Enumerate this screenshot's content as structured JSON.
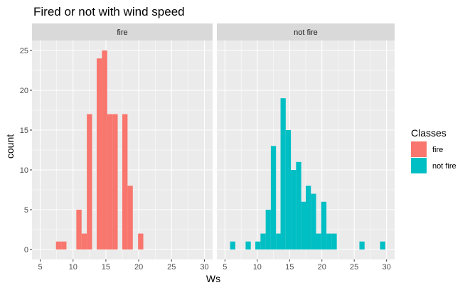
{
  "chart_data": {
    "type": "bar",
    "subtype": "faceted-histogram",
    "title": "Fired or not with wind speed",
    "xlabel": "Ws",
    "ylabel": "count",
    "xlim": [
      5,
      30
    ],
    "ylim": [
      0,
      25
    ],
    "x_ticks": [
      5,
      10,
      15,
      20,
      25,
      30
    ],
    "y_ticks": [
      0,
      5,
      10,
      15,
      20,
      25
    ],
    "bin_width": 0.8,
    "grid": true,
    "legend": {
      "title": "Classes",
      "position": "right",
      "entries": [
        {
          "label": "fire",
          "color": "#F8766D"
        },
        {
          "label": "not fire",
          "color": "#00BFC4"
        }
      ]
    },
    "facets": [
      {
        "name": "fire",
        "color": "#F8766D",
        "bins": [
          {
            "x": 7.8,
            "count": 1
          },
          {
            "x": 8.6,
            "count": 1
          },
          {
            "x": 10.9,
            "count": 5
          },
          {
            "x": 11.7,
            "count": 2
          },
          {
            "x": 12.5,
            "count": 17
          },
          {
            "x": 14.0,
            "count": 24
          },
          {
            "x": 14.8,
            "count": 25
          },
          {
            "x": 15.6,
            "count": 17
          },
          {
            "x": 16.4,
            "count": 17
          },
          {
            "x": 17.9,
            "count": 17
          },
          {
            "x": 18.7,
            "count": 8
          },
          {
            "x": 20.3,
            "count": 2
          }
        ]
      },
      {
        "name": "not fire",
        "color": "#00BFC4",
        "bins": [
          {
            "x": 6.2,
            "count": 1
          },
          {
            "x": 8.6,
            "count": 1
          },
          {
            "x": 10.1,
            "count": 1
          },
          {
            "x": 10.9,
            "count": 2
          },
          {
            "x": 11.7,
            "count": 5
          },
          {
            "x": 12.5,
            "count": 13
          },
          {
            "x": 13.3,
            "count": 2
          },
          {
            "x": 14.0,
            "count": 19
          },
          {
            "x": 14.8,
            "count": 15
          },
          {
            "x": 15.6,
            "count": 10
          },
          {
            "x": 16.4,
            "count": 11
          },
          {
            "x": 17.2,
            "count": 6
          },
          {
            "x": 17.9,
            "count": 8
          },
          {
            "x": 18.7,
            "count": 7
          },
          {
            "x": 19.5,
            "count": 2
          },
          {
            "x": 20.3,
            "count": 6
          },
          {
            "x": 21.1,
            "count": 2
          },
          {
            "x": 21.9,
            "count": 2
          },
          {
            "x": 26.2,
            "count": 1
          },
          {
            "x": 29.4,
            "count": 1
          }
        ]
      }
    ]
  }
}
